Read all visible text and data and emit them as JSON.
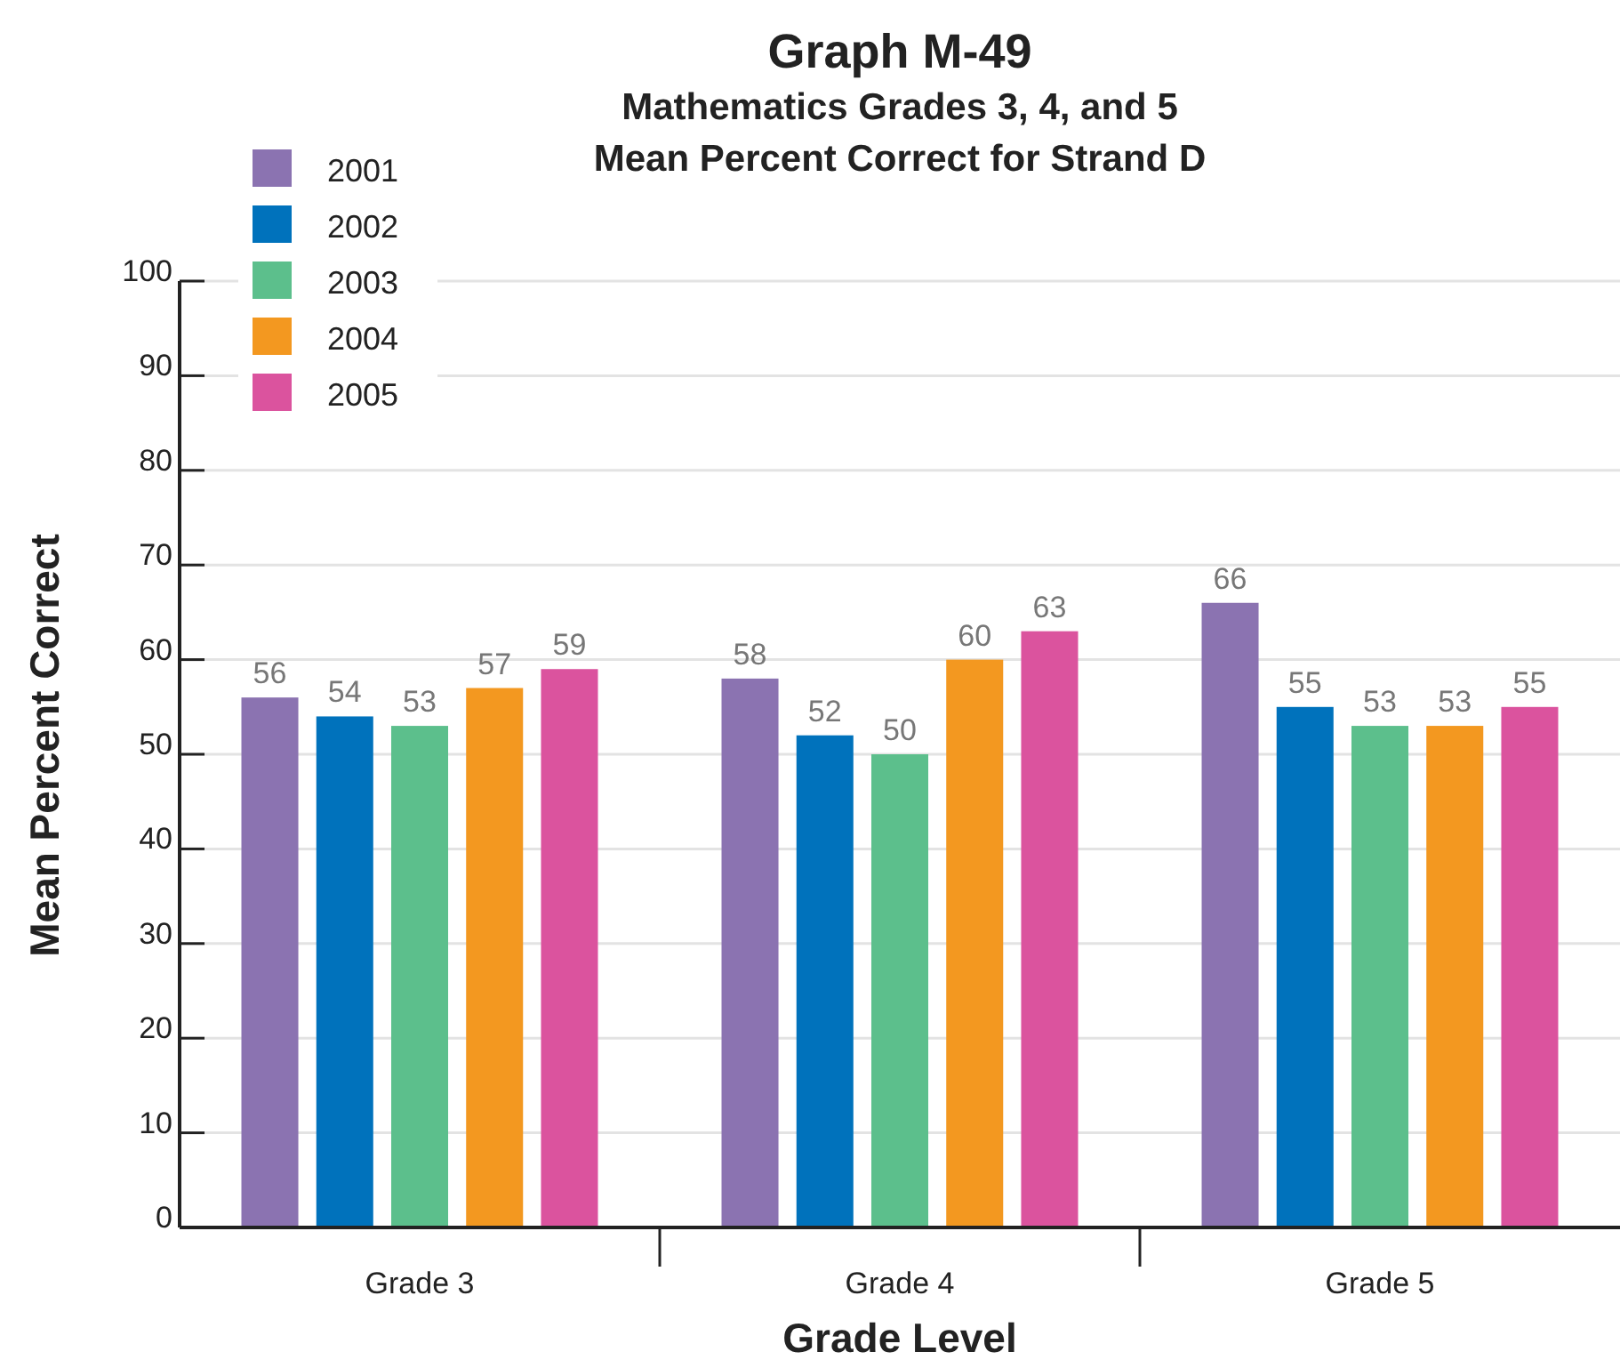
{
  "chart_data": {
    "type": "bar",
    "title": "Graph M-49",
    "subtitle": "Mathematics Grades 3, 4, and 5\nMean Percent Correct for Strand D",
    "xlabel": "Grade Level",
    "ylabel": "Mean Percent Correct",
    "categories": [
      "Grade 3",
      "Grade 4",
      "Grade 5"
    ],
    "series": [
      {
        "name": "2001",
        "color": "#8b73b1",
        "values": [
          56,
          58,
          66
        ]
      },
      {
        "name": "2002",
        "color": "#0072bc",
        "values": [
          54,
          52,
          55
        ]
      },
      {
        "name": "2003",
        "color": "#5cbf8c",
        "values": [
          53,
          50,
          53
        ]
      },
      {
        "name": "2004",
        "color": "#f39820",
        "values": [
          57,
          60,
          53
        ]
      },
      {
        "name": "2005",
        "color": "#db539e",
        "values": [
          59,
          63,
          55
        ]
      }
    ],
    "ylim": [
      0,
      100
    ],
    "yticks": [
      0,
      10,
      20,
      30,
      40,
      50,
      60,
      70,
      80,
      90,
      100
    ],
    "grid": "y",
    "legend": "top left",
    "data_labels": true
  }
}
